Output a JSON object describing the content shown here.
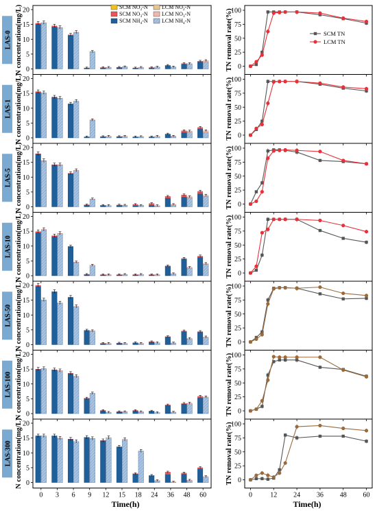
{
  "labels": {
    "left_ylabel": "N concentration(mg/L)",
    "right_ylabel": "TN removal rate(%)",
    "xlabel": "Time(h)"
  },
  "legend_left": [
    {
      "name": "SCM NO2-N",
      "color": "#f2c21b"
    },
    {
      "name": "LCM NO2-N",
      "color": "#e8c48e"
    },
    {
      "name": "SCM NO3-N",
      "color": "#e8565a"
    },
    {
      "name": "LCM NO3-N",
      "color": "#f0b7ae"
    },
    {
      "name": "SCM NH4-N",
      "color": "#1f5f9a"
    },
    {
      "name": "LCM NH4-N",
      "color": "#a9c5e3"
    }
  ],
  "legend_right": [
    {
      "name": "SCM TN",
      "color": "#555555"
    },
    {
      "name": "LCM TN",
      "color": "#e8303a"
    }
  ],
  "chart_data": [
    {
      "type": "bar",
      "stacked": true,
      "categories": [
        "0",
        "3",
        "6",
        "9",
        "12",
        "15",
        "18",
        "24",
        "36",
        "48",
        "60"
      ],
      "ylim": [
        0,
        20
      ],
      "yticks": [
        0,
        5,
        10,
        15,
        20
      ],
      "panels": [
        {
          "label": "LAS-0",
          "scm_nh4": [
            15.1,
            14.2,
            11.3,
            0.3,
            0.4,
            0.5,
            0.3,
            0.4,
            1.1,
            1.6,
            2.4
          ],
          "scm_no3": [
            0.3,
            0.3,
            0.2,
            0.05,
            0.05,
            0.05,
            0.05,
            0.05,
            0.1,
            0.2,
            0.2
          ],
          "lcm_nh4": [
            15.5,
            13.9,
            12.3,
            5.8,
            0.5,
            0.7,
            0.5,
            0.6,
            0.6,
            1.6,
            2.3
          ],
          "lcm_no3": [
            0.1,
            0.1,
            0.1,
            0.05,
            0.05,
            0.05,
            0.05,
            0.05,
            0.1,
            0.2,
            0.5
          ]
        },
        {
          "label": "LAS-1",
          "scm_nh4": [
            15.3,
            13.6,
            11.4,
            0.3,
            0.4,
            0.4,
            0.3,
            0.3,
            1.2,
            1.8,
            3.0
          ],
          "scm_no3": [
            0.3,
            0.2,
            0.1,
            0.05,
            0.05,
            0.05,
            0.05,
            0.05,
            0.1,
            0.6,
            0.5
          ],
          "lcm_nh4": [
            15.1,
            13.3,
            12.3,
            6.0,
            0.5,
            0.5,
            0.4,
            0.5,
            0.5,
            1.9,
            1.8
          ],
          "lcm_no3": [
            0.1,
            0.1,
            0.1,
            0.05,
            0.05,
            0.05,
            0.05,
            0.05,
            0.1,
            0.4,
            0.6
          ]
        },
        {
          "label": "LAS-5",
          "scm_nh4": [
            17.8,
            14.1,
            11.2,
            0.6,
            0.4,
            0.5,
            0.4,
            0.5,
            2.9,
            3.3,
            4.4
          ],
          "scm_no3": [
            0.1,
            0.1,
            0.1,
            0.05,
            0.1,
            0.1,
            0.4,
            0.6,
            0.6,
            0.7,
            0.8
          ],
          "lcm_nh4": [
            15.5,
            14.1,
            12.2,
            2.6,
            0.4,
            0.5,
            0.4,
            0.3,
            0.6,
            3.0,
            3.5
          ],
          "lcm_no3": [
            0.1,
            0.1,
            0.1,
            0.05,
            0.05,
            0.05,
            0.1,
            0.1,
            0.2,
            0.4,
            0.4
          ]
        },
        {
          "label": "LAS-10",
          "scm_nh4": [
            14.5,
            13.2,
            9.8,
            0.4,
            0.3,
            0.3,
            0.3,
            0.3,
            3.2,
            5.6,
            6.2
          ],
          "scm_no3": [
            0.4,
            0.3,
            0.1,
            0.05,
            0.05,
            0.05,
            0.05,
            0.05,
            0.1,
            0.2,
            0.4
          ],
          "lcm_nh4": [
            15.5,
            14.2,
            4.5,
            3.5,
            0.3,
            0.4,
            0.4,
            0.3,
            0.6,
            2.6,
            3.8
          ],
          "lcm_no3": [
            0.1,
            0.1,
            0.1,
            0.05,
            0.05,
            0.05,
            0.05,
            0.05,
            0.1,
            0.2,
            0.3
          ]
        },
        {
          "label": "LAS-50",
          "scm_nh4": [
            19.6,
            17.8,
            15.9,
            4.8,
            0.4,
            0.5,
            0.6,
            0.9,
            2.6,
            4.4,
            4.2
          ],
          "scm_no3": [
            0.4,
            0.1,
            0.1,
            0.05,
            0.05,
            0.05,
            0.05,
            0.1,
            0.1,
            0.2,
            0.2
          ],
          "lcm_nh4": [
            15.0,
            14.0,
            12.8,
            4.6,
            0.4,
            0.4,
            0.4,
            0.6,
            0.5,
            1.9,
            2.4
          ],
          "lcm_no3": [
            0.1,
            0.1,
            0.1,
            0.05,
            0.05,
            0.05,
            0.05,
            0.05,
            0.1,
            0.2,
            0.2
          ]
        },
        {
          "label": "LAS-100",
          "scm_nh4": [
            14.9,
            14.7,
            13.5,
            5.1,
            1.0,
            0.6,
            1.0,
            0.8,
            2.8,
            3.2,
            5.3
          ],
          "scm_no3": [
            0.1,
            0.1,
            0.1,
            0.05,
            0.05,
            0.05,
            0.05,
            0.05,
            0.1,
            0.2,
            0.5
          ],
          "lcm_nh4": [
            15.1,
            14.4,
            12.5,
            6.8,
            0.4,
            0.6,
            0.6,
            0.3,
            0.4,
            3.3,
            5.4
          ],
          "lcm_no3": [
            0.1,
            0.1,
            0.1,
            0.05,
            0.05,
            0.05,
            0.05,
            0.05,
            0.1,
            0.2,
            0.2
          ]
        },
        {
          "label": "LAS-300",
          "scm_nh4": [
            15.7,
            15.7,
            14.6,
            15.2,
            14.1,
            12.0,
            2.9,
            2.3,
            2.7,
            2.8,
            4.6
          ],
          "scm_no3": [
            0.05,
            0.05,
            0.05,
            0.05,
            0.05,
            0.05,
            0.05,
            0.1,
            0.8,
            0.4,
            0.4
          ],
          "lcm_nh4": [
            15.7,
            14.9,
            13.8,
            14.8,
            15.1,
            14.5,
            10.6,
            0.6,
            0.1,
            0.6,
            1.8
          ],
          "lcm_no3": [
            0.05,
            0.05,
            0.05,
            0.05,
            0.05,
            0.05,
            0.05,
            0.05,
            0.1,
            0.2,
            0.2
          ]
        }
      ]
    },
    {
      "type": "line",
      "x": [
        0,
        3,
        6,
        9,
        12,
        15,
        18,
        24,
        36,
        48,
        60
      ],
      "xticks": [
        0,
        12,
        24,
        36,
        48,
        60
      ],
      "ylim": [
        0,
        100
      ],
      "yticks": [
        0,
        25,
        50,
        75,
        100
      ],
      "panels": [
        {
          "label": "LAS-0",
          "scm": [
            0,
            3,
            25,
            97,
            97,
            97,
            97,
            97,
            92,
            85,
            77
          ],
          "lcm": [
            0,
            8,
            20,
            62,
            95,
            96,
            97,
            97,
            95,
            86,
            80
          ]
        },
        {
          "label": "LAS-1",
          "scm": [
            0,
            10,
            25,
            96,
            96,
            96,
            96,
            96,
            91,
            84,
            79
          ],
          "lcm": [
            0,
            12,
            19,
            57,
            95,
            96,
            96,
            96,
            93,
            86,
            83
          ]
        },
        {
          "label": "LAS-5",
          "scm": [
            0,
            22,
            38,
            95,
            97,
            97,
            96,
            93,
            78,
            76,
            72
          ],
          "lcm": [
            0,
            5,
            22,
            82,
            95,
            96,
            97,
            96,
            94,
            78,
            72
          ]
        },
        {
          "label": "LAS-10",
          "scm": [
            0,
            5,
            32,
            96,
            96,
            96,
            96,
            96,
            76,
            62,
            55
          ],
          "lcm": [
            0,
            12,
            72,
            78,
            96,
            96,
            96,
            96,
            94,
            85,
            74
          ]
        },
        {
          "label": "LAS-50",
          "scm": [
            0,
            8,
            18,
            75,
            96,
            97,
            97,
            96,
            86,
            77,
            78
          ],
          "lcm": [
            0,
            5,
            13,
            68,
            95,
            97,
            97,
            96,
            98,
            87,
            83
          ]
        },
        {
          "label": "LAS-100",
          "scm": [
            0,
            3,
            8,
            64,
            88,
            91,
            91,
            91,
            78,
            74,
            62
          ],
          "lcm": [
            0,
            3,
            18,
            55,
            97,
            96,
            96,
            96,
            96,
            73,
            61
          ]
        },
        {
          "label": "LAS-300",
          "scm": [
            0,
            2,
            2,
            1,
            3,
            18,
            80,
            75,
            78,
            78,
            69
          ],
          "lcm": [
            0,
            8,
            12,
            8,
            5,
            12,
            30,
            95,
            97,
            92,
            88
          ]
        }
      ]
    }
  ]
}
